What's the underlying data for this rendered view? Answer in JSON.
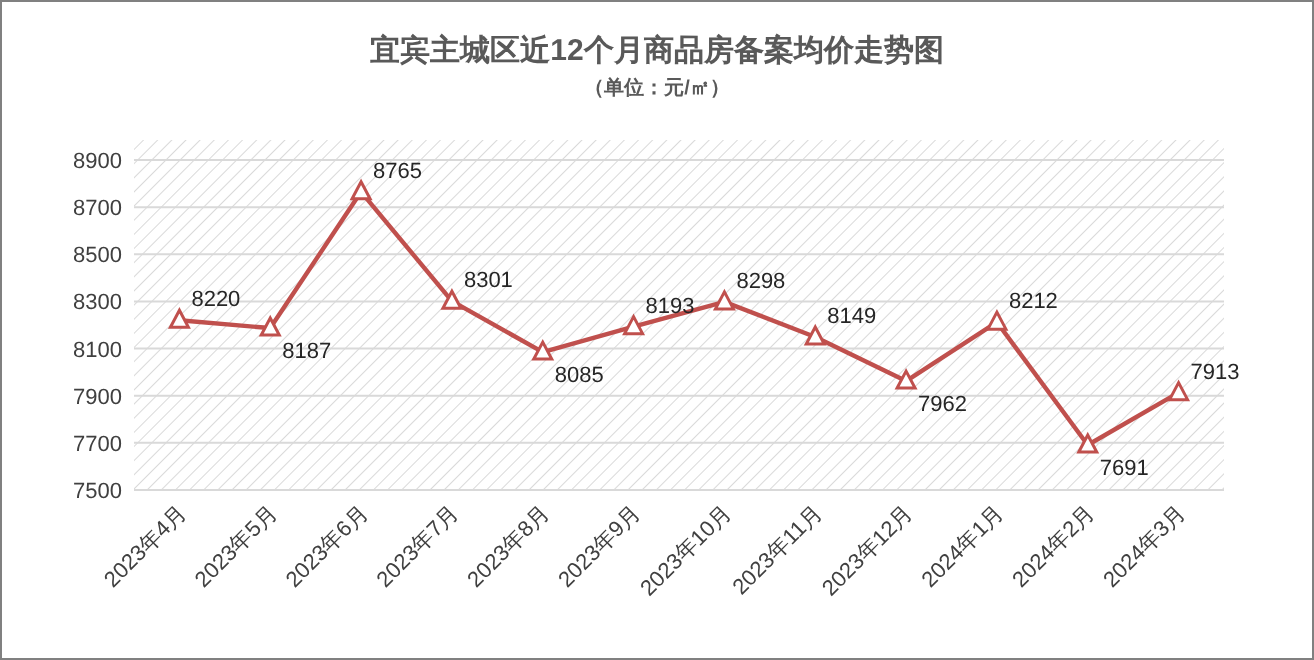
{
  "chart_data": {
    "type": "line",
    "title": "宜宾主城区近12个月商品房备案均价走势图",
    "subtitle": "（单位：元/㎡）",
    "categories": [
      "2023年4月",
      "2023年5月",
      "2023年6月",
      "2023年7月",
      "2023年8月",
      "2023年9月",
      "2023年10月",
      "2023年11月",
      "2023年12月",
      "2024年1月",
      "2024年2月",
      "2024年3月"
    ],
    "series": [
      {
        "color": "#c0504d",
        "values": [
          8220,
          8187,
          8765,
          8301,
          8085,
          8193,
          8298,
          8149,
          7962,
          8212,
          7691,
          7913
        ]
      }
    ],
    "ylim": [
      7500,
      8900
    ],
    "yticks": [
      7500,
      7700,
      7900,
      8100,
      8300,
      8500,
      8700,
      8900
    ],
    "grid": "y",
    "marker": "triangle",
    "line_style": "solid",
    "data_labels": true
  }
}
